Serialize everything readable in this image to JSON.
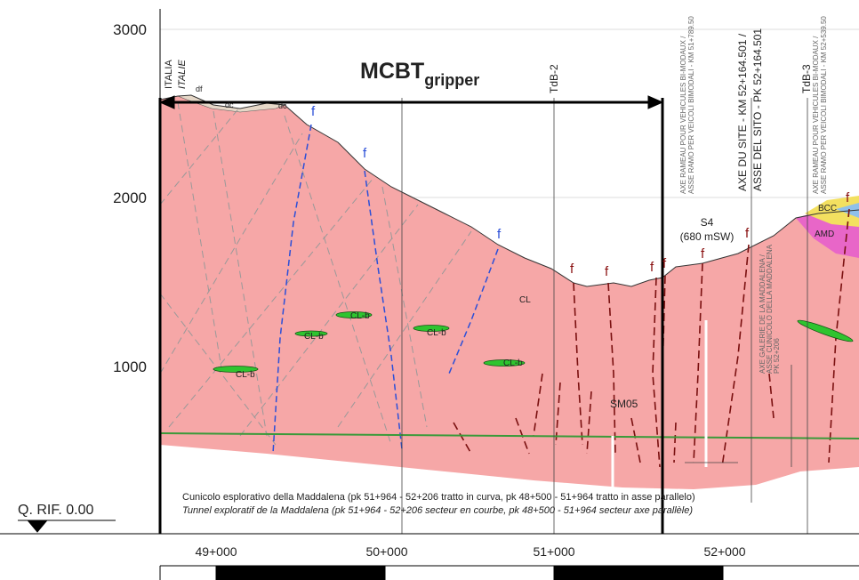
{
  "axis": {
    "elevations": [
      "3000",
      "2000",
      "1000"
    ],
    "reference": "Q. RIF. 0.00"
  },
  "borders": {
    "italy": "ITALIA",
    "italy_fr": "ITALIE"
  },
  "title": {
    "main": "MCBT",
    "sub": "gripper"
  },
  "surface_labels": [
    "df",
    "dc",
    "dc"
  ],
  "faults": [
    "f",
    "f",
    "f",
    "f",
    "f",
    "f",
    "f",
    "f",
    "f",
    "f"
  ],
  "boreholes": [
    "TdB-2",
    "TdB-3",
    "S4",
    "(680 mSW)",
    "SM05"
  ],
  "axes_labels": {
    "branch1": [
      "AXE RAMEAU POUR VEHICULES BI-MODAUX /",
      "ASSE RAMO PER VEICOLI BIMODALI - KM 51+789.50"
    ],
    "site": [
      "AXE DU SITE - KM 52+164.501 /",
      "ASSE DEL SITO - PK 52+164.501"
    ],
    "branch2": [
      "AXE RAMEAU POUR VEHICULES BI-MODAUX /",
      "ASSE RAMO PER VEICOLI BIMODALI - KM 52+539.50"
    ],
    "gallery": [
      "AXE GALERIE DE LA MADDALENA /",
      "ASSE CUNICOLO DELLA MADDALENA",
      "PK 52+206"
    ]
  },
  "units": [
    "CL",
    "CL-b",
    "CL-b",
    "CL-b",
    "CL-b",
    "CL-b",
    "BCC",
    "AMD"
  ],
  "tunnel": [
    "Cunicolo esplorativo della Maddalena (pk 51+964 - 52+206 tratto in curva, pk 48+500 - 51+964 tratto in asse parallelo)",
    "Tunnel exploratif de la Maddalena (pk 51+964 - 52+206 secteur en courbe, pk 48+500 - 51+964 secteur axe parallèle)"
  ],
  "chainages": [
    "49+000",
    "50+000",
    "51+000",
    "52+000"
  ]
}
